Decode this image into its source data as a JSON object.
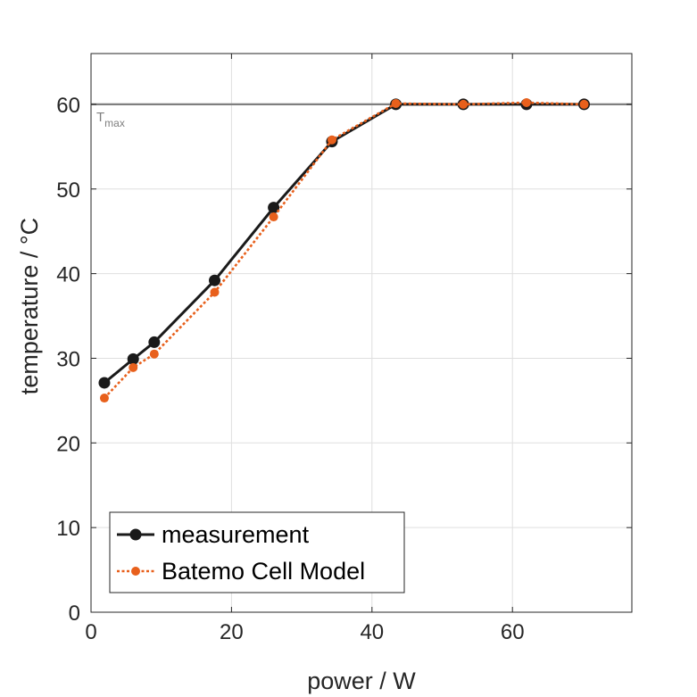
{
  "chart_data": {
    "type": "line",
    "xlabel": "power / W",
    "ylabel": "temperature / °C",
    "xlim": [
      0,
      77
    ],
    "ylim": [
      0,
      66
    ],
    "xticks": [
      0,
      20,
      40,
      60
    ],
    "yticks": [
      0,
      10,
      20,
      30,
      40,
      50,
      60
    ],
    "grid": true,
    "legend_position": "bottom-left",
    "series": [
      {
        "name": "measurement",
        "color": "#1a1a1a",
        "line_style": "solid",
        "x": [
          1.9,
          6.0,
          9.0,
          17.6,
          26.0,
          34.3,
          43.4,
          53.0,
          62.0,
          70.2
        ],
        "y": [
          27.1,
          29.9,
          31.9,
          39.2,
          47.8,
          55.6,
          60.0,
          60.0,
          60.0,
          60.0
        ]
      },
      {
        "name": "Batemo Cell Model",
        "color": "#e8601c",
        "line_style": "dotted",
        "x": [
          1.9,
          6.0,
          9.0,
          17.6,
          26.0,
          34.3,
          43.4,
          53.0,
          62.0,
          70.2
        ],
        "y": [
          25.3,
          28.9,
          30.5,
          37.8,
          46.7,
          55.8,
          60.1,
          60.0,
          60.2,
          60.0
        ]
      }
    ],
    "annotations": [
      {
        "label": "T",
        "subscript": "max",
        "y": 60
      }
    ]
  }
}
